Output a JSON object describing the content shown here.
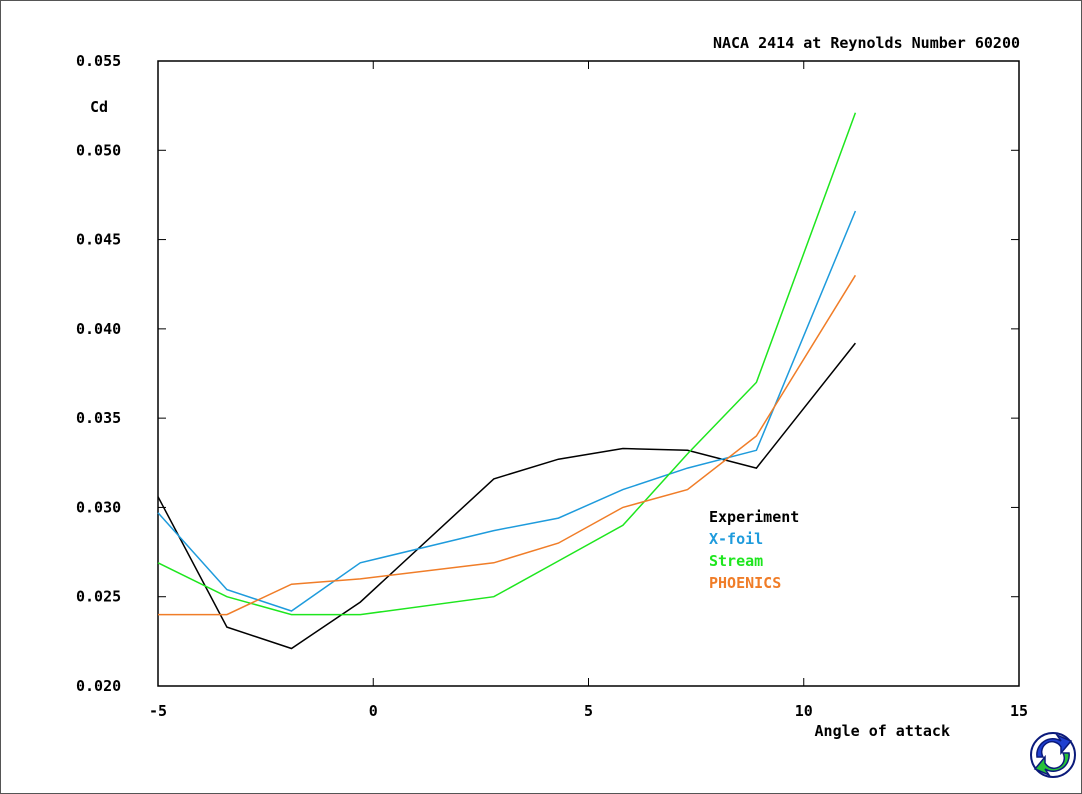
{
  "chart_data": {
    "type": "line",
    "title": "NACA 2414 at Reynolds Number 60200",
    "xlabel": "Angle of attack",
    "ylabel": "Cd",
    "xlim": [
      -5,
      15
    ],
    "ylim": [
      0.02,
      0.055
    ],
    "xticks": [
      "-5",
      "0",
      "5",
      "10",
      "15"
    ],
    "yticks": [
      "0.020",
      "0.025",
      "0.030",
      "0.035",
      "0.040",
      "0.045",
      "0.050",
      "0.055"
    ],
    "legend_position": "right",
    "series": [
      {
        "name": "Experiment",
        "color": "#000000",
        "x": [
          -5.0,
          -3.4,
          -1.9,
          -0.3,
          2.8,
          4.3,
          5.8,
          7.3,
          8.9,
          11.2
        ],
        "y": [
          0.0306,
          0.0233,
          0.0221,
          0.0247,
          0.0316,
          0.0327,
          0.0333,
          0.0332,
          0.0322,
          0.0392
        ]
      },
      {
        "name": "X-foil",
        "color": "#1e9bdc",
        "x": [
          -5.0,
          -3.4,
          -1.9,
          -0.3,
          2.8,
          4.3,
          5.8,
          7.3,
          8.9,
          11.2
        ],
        "y": [
          0.0297,
          0.0254,
          0.0242,
          0.0269,
          0.0287,
          0.0294,
          0.031,
          0.0322,
          0.0332,
          0.0466
        ]
      },
      {
        "name": "Stream",
        "color": "#1ee61e",
        "x": [
          -5.0,
          -3.4,
          -1.9,
          -0.3,
          2.8,
          4.3,
          5.8,
          7.3,
          8.9,
          11.2
        ],
        "y": [
          0.0269,
          0.025,
          0.024,
          0.024,
          0.025,
          0.027,
          0.029,
          0.033,
          0.037,
          0.0521
        ]
      },
      {
        "name": "PHOENICS",
        "color": "#f07d28",
        "x": [
          -5.0,
          -3.4,
          -1.9,
          -0.3,
          2.8,
          4.3,
          5.8,
          7.3,
          8.9,
          11.2
        ],
        "y": [
          0.024,
          0.024,
          0.0257,
          0.026,
          0.0269,
          0.028,
          0.03,
          0.031,
          0.034,
          0.043
        ]
      }
    ]
  }
}
